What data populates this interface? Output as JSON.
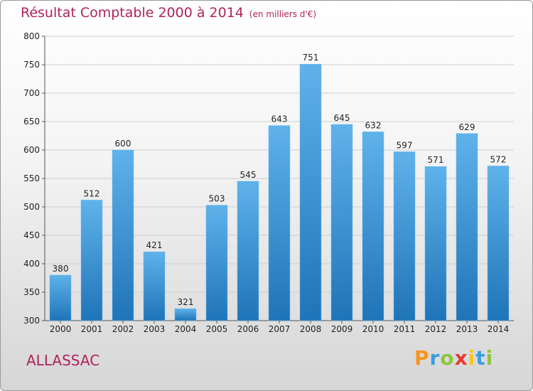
{
  "title": "Résultat Comptable 2000 à 2014",
  "subtitle": "(en milliers d'€)",
  "commune": "ALLASSAC",
  "logo": {
    "letters": [
      "P",
      "r",
      "o",
      "x",
      "i",
      "t",
      "i"
    ],
    "colors": [
      "#f7941d",
      "#3aa0dc",
      "#8dc63f",
      "#e63b2e",
      "#f7c51e",
      "#3aa0dc",
      "#8dc63f"
    ]
  },
  "chart_data": {
    "type": "bar",
    "categories": [
      "2000",
      "2001",
      "2002",
      "2003",
      "2004",
      "2005",
      "2006",
      "2007",
      "2008",
      "2009",
      "2010",
      "2011",
      "2012",
      "2013",
      "2014"
    ],
    "values": [
      380,
      512,
      600,
      421,
      321,
      503,
      545,
      643,
      751,
      645,
      632,
      597,
      571,
      629,
      572
    ],
    "ylim": [
      300,
      800
    ],
    "yticks": [
      300,
      350,
      400,
      450,
      500,
      550,
      600,
      650,
      700,
      750,
      800
    ],
    "grid": true,
    "bar_color": "#3a96d6"
  }
}
